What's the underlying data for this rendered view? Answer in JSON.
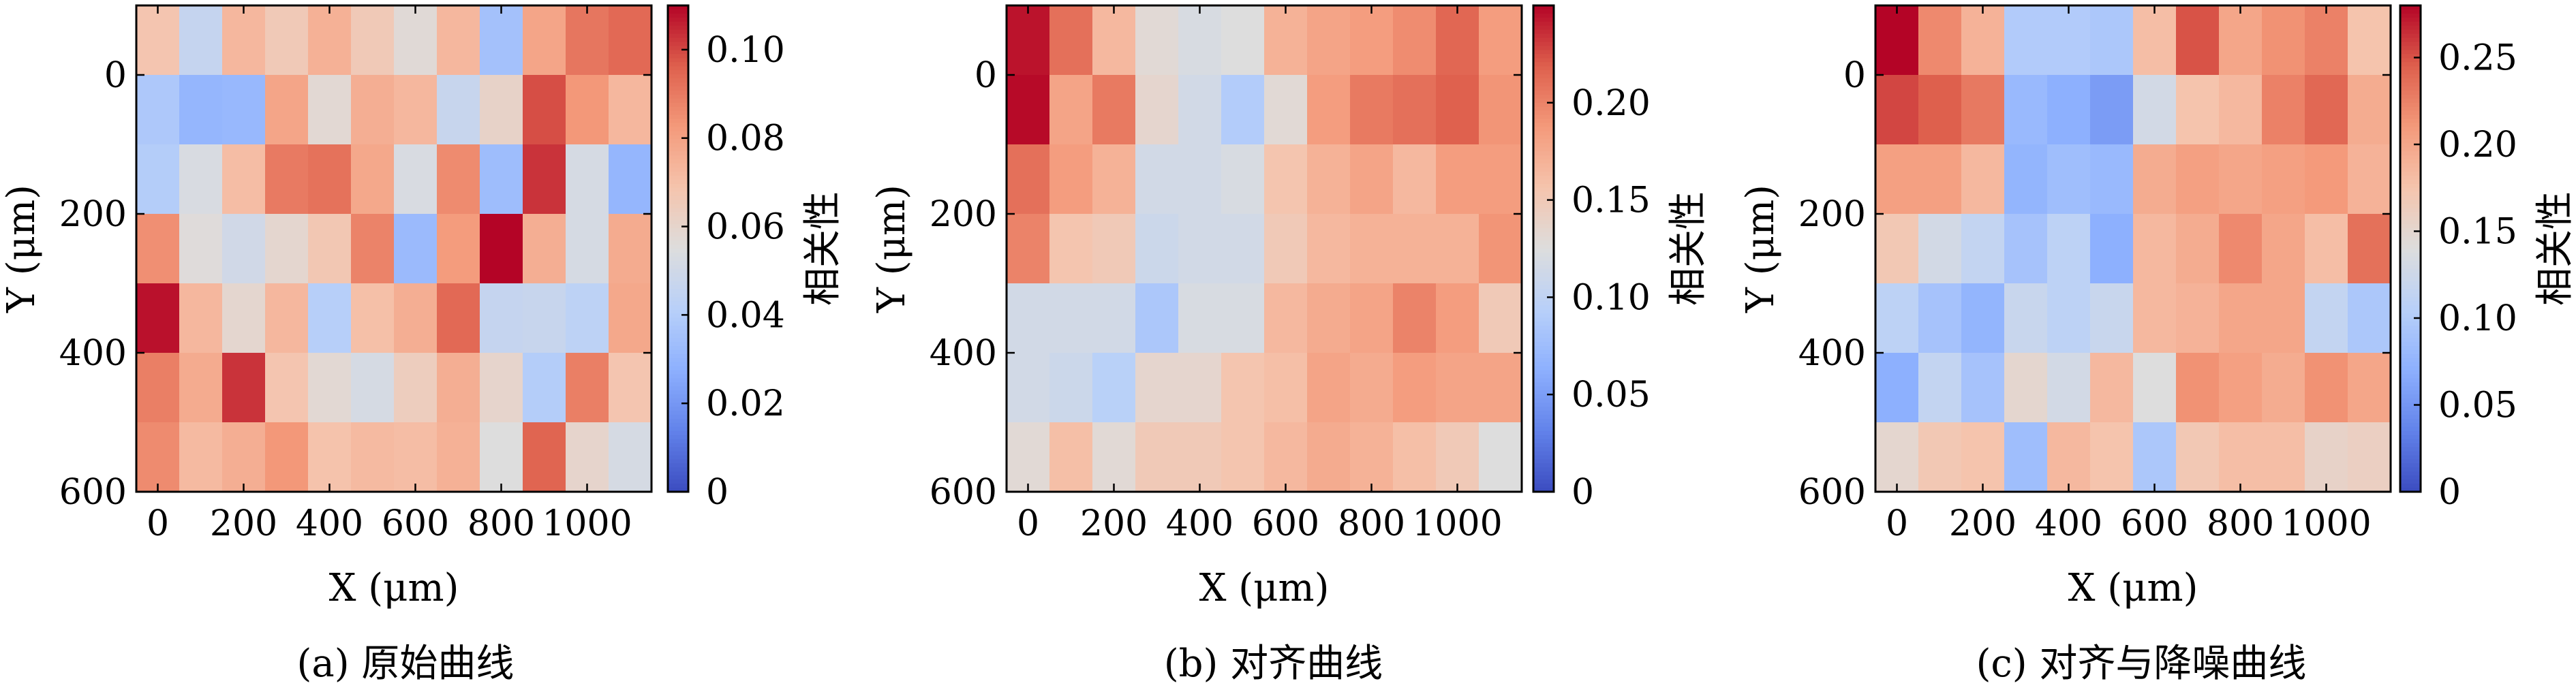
{
  "chart_data": [
    {
      "type": "heatmap",
      "caption": "(a) 原始曲线",
      "xlabel": "X (μm)",
      "ylabel": "Y (μm)",
      "colorbar_label": "相关性",
      "colormap": "coolwarm",
      "x_ticks": [
        "0",
        "200",
        "400",
        "600",
        "800",
        "1000"
      ],
      "y_ticks": [
        "0",
        "200",
        "400",
        "600"
      ],
      "colorbar_ticks": [
        "0",
        "0.02",
        "0.04",
        "0.06",
        "0.08",
        "0.10"
      ],
      "vmin": 0,
      "vmax": 0.11,
      "x_range": [
        -50,
        1150
      ],
      "y_range": [
        -100,
        600
      ],
      "cell_size": 100,
      "rows": [
        [
          0.068,
          0.046,
          0.073,
          0.066,
          0.075,
          0.066,
          0.057,
          0.073,
          0.035,
          0.079,
          0.091,
          0.094
        ],
        [
          0.038,
          0.03,
          0.031,
          0.079,
          0.058,
          0.076,
          0.073,
          0.047,
          0.061,
          0.099,
          0.083,
          0.073
        ],
        [
          0.04,
          0.053,
          0.071,
          0.09,
          0.092,
          0.078,
          0.053,
          0.086,
          0.033,
          0.103,
          0.052,
          0.03
        ],
        [
          0.085,
          0.056,
          0.05,
          0.059,
          0.067,
          0.088,
          0.032,
          0.082,
          0.11,
          0.076,
          0.052,
          0.077
        ],
        [
          0.108,
          0.073,
          0.059,
          0.073,
          0.041,
          0.07,
          0.076,
          0.094,
          0.046,
          0.047,
          0.043,
          0.078
        ],
        [
          0.089,
          0.077,
          0.103,
          0.068,
          0.058,
          0.052,
          0.064,
          0.076,
          0.06,
          0.04,
          0.089,
          0.068
        ],
        [
          0.086,
          0.072,
          0.076,
          0.083,
          0.069,
          0.072,
          0.071,
          0.075,
          0.055,
          0.095,
          0.06,
          0.052
        ]
      ]
    },
    {
      "type": "heatmap",
      "caption": "(b) 对齐曲线",
      "xlabel": "X (μm)",
      "ylabel": "Y (μm)",
      "colorbar_label": "相关性",
      "colormap": "coolwarm",
      "x_ticks": [
        "0",
        "200",
        "400",
        "600",
        "800",
        "1000"
      ],
      "y_ticks": [
        "0",
        "200",
        "400",
        "600"
      ],
      "colorbar_ticks": [
        "0",
        "0.05",
        "0.10",
        "0.15",
        "0.20"
      ],
      "vmin": 0,
      "vmax": 0.25,
      "x_range": [
        -50,
        1150
      ],
      "y_range": [
        -100,
        600
      ],
      "cell_size": 100,
      "rows": [
        [
          0.245,
          0.21,
          0.165,
          0.13,
          0.12,
          0.125,
          0.17,
          0.18,
          0.185,
          0.195,
          0.215,
          0.185
        ],
        [
          0.248,
          0.18,
          0.205,
          0.135,
          0.115,
          0.09,
          0.13,
          0.185,
          0.205,
          0.21,
          0.218,
          0.19
        ],
        [
          0.21,
          0.185,
          0.17,
          0.115,
          0.115,
          0.12,
          0.155,
          0.17,
          0.18,
          0.165,
          0.185,
          0.185
        ],
        [
          0.2,
          0.155,
          0.15,
          0.11,
          0.115,
          0.115,
          0.15,
          0.165,
          0.17,
          0.17,
          0.17,
          0.19
        ],
        [
          0.115,
          0.115,
          0.115,
          0.085,
          0.12,
          0.12,
          0.165,
          0.175,
          0.18,
          0.2,
          0.185,
          0.15
        ],
        [
          0.115,
          0.11,
          0.095,
          0.135,
          0.135,
          0.155,
          0.16,
          0.18,
          0.175,
          0.185,
          0.18,
          0.18
        ],
        [
          0.13,
          0.16,
          0.13,
          0.15,
          0.15,
          0.155,
          0.165,
          0.175,
          0.17,
          0.16,
          0.15,
          0.125
        ]
      ]
    },
    {
      "type": "heatmap",
      "caption": "(c) 对齐与降噪曲线",
      "xlabel": "X (μm)",
      "ylabel": "Y (μm)",
      "colorbar_label": "相关性",
      "colormap": "coolwarm",
      "x_ticks": [
        "0",
        "200",
        "400",
        "600",
        "800",
        "1000"
      ],
      "y_ticks": [
        "0",
        "200",
        "400",
        "600"
      ],
      "colorbar_ticks": [
        "0",
        "0.05",
        "0.10",
        "0.15",
        "0.20",
        "0.25"
      ],
      "vmin": 0,
      "vmax": 0.28,
      "x_range": [
        -50,
        1150
      ],
      "y_range": [
        -100,
        600
      ],
      "cell_size": 100,
      "rows": [
        [
          0.28,
          0.22,
          0.19,
          0.1,
          0.1,
          0.095,
          0.18,
          0.25,
          0.2,
          0.215,
          0.225,
          0.175
        ],
        [
          0.255,
          0.245,
          0.23,
          0.08,
          0.07,
          0.055,
          0.13,
          0.175,
          0.185,
          0.225,
          0.24,
          0.195
        ],
        [
          0.205,
          0.205,
          0.185,
          0.075,
          0.085,
          0.08,
          0.195,
          0.205,
          0.2,
          0.205,
          0.21,
          0.19
        ],
        [
          0.17,
          0.13,
          0.115,
          0.09,
          0.11,
          0.07,
          0.185,
          0.195,
          0.22,
          0.2,
          0.18,
          0.235
        ],
        [
          0.11,
          0.09,
          0.075,
          0.12,
          0.11,
          0.12,
          0.185,
          0.19,
          0.2,
          0.2,
          0.115,
          0.095
        ],
        [
          0.07,
          0.115,
          0.09,
          0.15,
          0.13,
          0.185,
          0.14,
          0.215,
          0.205,
          0.195,
          0.215,
          0.2
        ],
        [
          0.15,
          0.17,
          0.175,
          0.085,
          0.185,
          0.175,
          0.095,
          0.17,
          0.18,
          0.18,
          0.155,
          0.16
        ]
      ]
    }
  ]
}
